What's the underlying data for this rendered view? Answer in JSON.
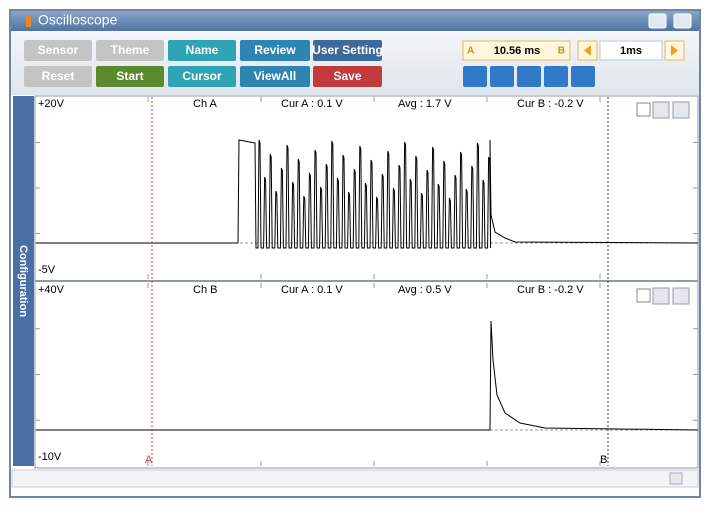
{
  "window": {
    "title": "Oscilloscope"
  },
  "toolbar": {
    "buttons": [
      "Sensor",
      "Theme",
      "Name",
      "Review",
      "User Setting",
      "Reset",
      "Start",
      "Cursor",
      "ViewAll",
      "Save"
    ],
    "cursor_time": "10.56 ms",
    "timebase": "1ms"
  },
  "side_tab": "Configuration",
  "channels": [
    {
      "top": "+20V",
      "bottom": "-5V",
      "name": "Ch A",
      "cur_a": "Cur A : 0.1 V",
      "avg": "Avg : 1.7 V",
      "cur_b": "Cur B : -0.2 V"
    },
    {
      "top": "+40V",
      "bottom": "-10V",
      "name": "Ch B",
      "cur_a": "Cur A : 0.1 V",
      "avg": "Avg : 0.5 V",
      "cur_b": "Cur B : -0.2 V"
    }
  ],
  "markers": [
    "A",
    "B"
  ]
}
